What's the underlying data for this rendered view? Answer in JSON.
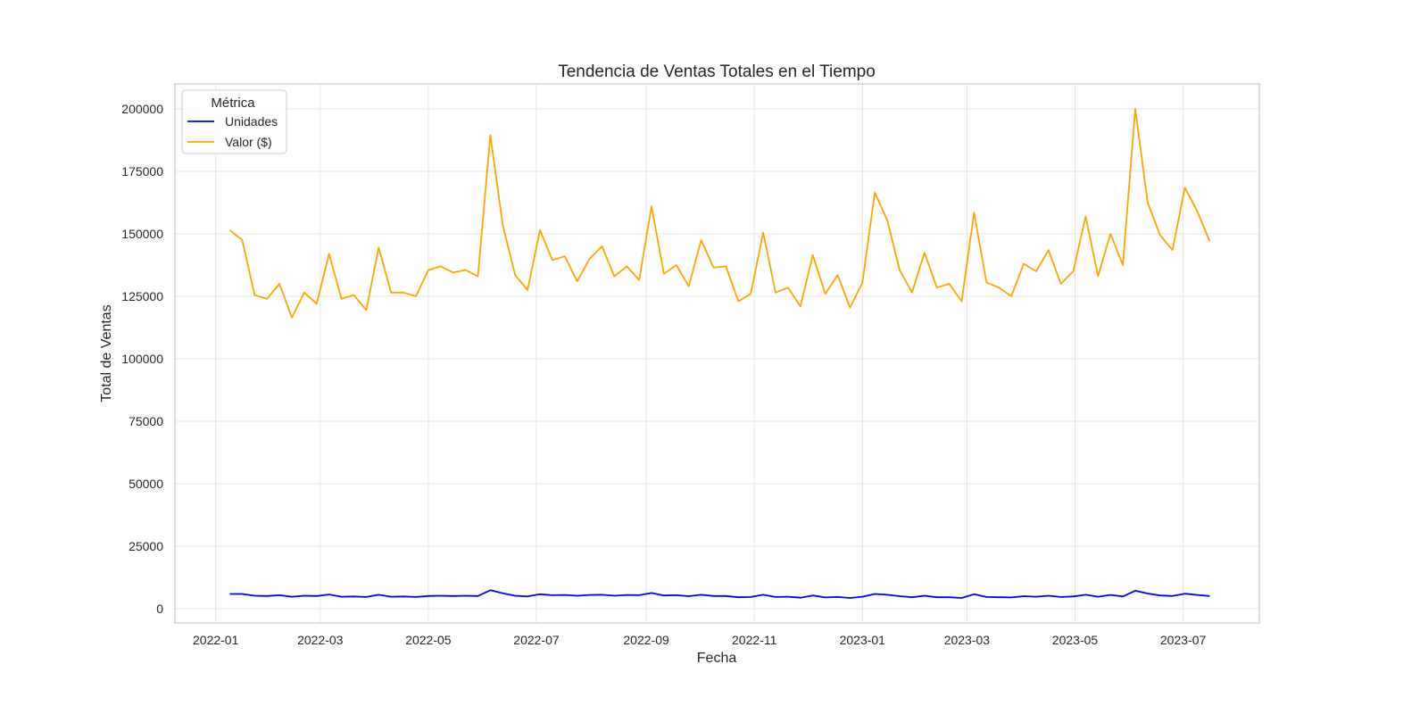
{
  "chart_data": {
    "type": "line",
    "title": "Tendencia de Ventas Totales en el Tiempo",
    "xlabel": "Fecha",
    "ylabel": "Total de Ventas",
    "x_type": "date",
    "xlim": [
      "2021-12-09",
      "2023-08-13"
    ],
    "ylim": [
      -5700,
      210000
    ],
    "x_ticks": [
      "2022-01-01",
      "2022-03-01",
      "2022-05-01",
      "2022-07-01",
      "2022-09-01",
      "2022-11-01",
      "2023-01-01",
      "2023-03-01",
      "2023-05-01",
      "2023-07-01"
    ],
    "x_tick_labels": [
      "2022-01",
      "2022-03",
      "2022-05",
      "2022-07",
      "2022-09",
      "2022-11",
      "2023-01",
      "2023-03",
      "2023-05",
      "2023-07"
    ],
    "y_ticks": [
      0,
      25000,
      50000,
      75000,
      100000,
      125000,
      150000,
      175000,
      200000
    ],
    "y_tick_labels": [
      "0",
      "25000",
      "50000",
      "75000",
      "100000",
      "125000",
      "150000",
      "175000",
      "200000"
    ],
    "grid": true,
    "legend": {
      "title": "Métrica",
      "position": "top-left"
    },
    "x": [
      "2022-01-09",
      "2022-01-16",
      "2022-01-23",
      "2022-01-30",
      "2022-02-06",
      "2022-02-13",
      "2022-02-20",
      "2022-02-27",
      "2022-03-06",
      "2022-03-13",
      "2022-03-20",
      "2022-03-27",
      "2022-04-03",
      "2022-04-10",
      "2022-04-17",
      "2022-04-24",
      "2022-05-01",
      "2022-05-08",
      "2022-05-15",
      "2022-05-22",
      "2022-05-29",
      "2022-06-05",
      "2022-06-12",
      "2022-06-19",
      "2022-06-26",
      "2022-07-03",
      "2022-07-10",
      "2022-07-17",
      "2022-07-24",
      "2022-07-31",
      "2022-08-07",
      "2022-08-14",
      "2022-08-21",
      "2022-08-28",
      "2022-09-04",
      "2022-09-11",
      "2022-09-18",
      "2022-09-25",
      "2022-10-02",
      "2022-10-09",
      "2022-10-16",
      "2022-10-23",
      "2022-10-30",
      "2022-11-06",
      "2022-11-13",
      "2022-11-20",
      "2022-11-27",
      "2022-12-04",
      "2022-12-11",
      "2022-12-18",
      "2022-12-25",
      "2023-01-01",
      "2023-01-08",
      "2023-01-15",
      "2023-01-22",
      "2023-01-29",
      "2023-02-05",
      "2023-02-12",
      "2023-02-19",
      "2023-02-26",
      "2023-03-05",
      "2023-03-12",
      "2023-03-19",
      "2023-03-26",
      "2023-04-02",
      "2023-04-09",
      "2023-04-16",
      "2023-04-23",
      "2023-04-30",
      "2023-05-07",
      "2023-05-14",
      "2023-05-21",
      "2023-05-28",
      "2023-06-04",
      "2023-06-11",
      "2023-06-18",
      "2023-06-25",
      "2023-07-02",
      "2023-07-09",
      "2023-07-16"
    ],
    "series": [
      {
        "name": "Unidades",
        "color": "#0000ff",
        "values": [
          5900,
          5900,
          5200,
          5100,
          5400,
          4800,
          5200,
          5100,
          5700,
          4800,
          4900,
          4700,
          5600,
          4800,
          4900,
          4700,
          5100,
          5200,
          5100,
          5200,
          5100,
          7400,
          6200,
          5200,
          4900,
          5800,
          5400,
          5500,
          5200,
          5500,
          5600,
          5200,
          5500,
          5400,
          6300,
          5300,
          5400,
          5000,
          5600,
          5100,
          5100,
          4600,
          4700,
          5600,
          4700,
          4800,
          4400,
          5300,
          4500,
          4700,
          4300,
          4800,
          5900,
          5600,
          5000,
          4600,
          5200,
          4600,
          4600,
          4300,
          5800,
          4700,
          4600,
          4500,
          5000,
          4800,
          5200,
          4700,
          4900,
          5600,
          4800,
          5500,
          4900,
          7200,
          6100,
          5300,
          5100,
          6000,
          5500,
          5100
        ]
      },
      {
        "name": "Valor ($)",
        "color": "#ffa500",
        "values": [
          151500,
          147500,
          125500,
          124000,
          130000,
          116500,
          126500,
          122000,
          142000,
          124000,
          125500,
          119500,
          144500,
          126500,
          126500,
          125000,
          135500,
          137000,
          134500,
          135500,
          133000,
          189500,
          153500,
          133500,
          127500,
          151500,
          139500,
          141000,
          131000,
          140000,
          145000,
          133000,
          137000,
          131500,
          161000,
          134000,
          137500,
          129000,
          147500,
          136500,
          137000,
          123000,
          126000,
          150500,
          126500,
          128500,
          121000,
          141500,
          126000,
          133500,
          120500,
          130500,
          166500,
          155500,
          135500,
          126500,
          142500,
          128500,
          130000,
          123000,
          158500,
          130500,
          128500,
          125000,
          138000,
          135000,
          143500,
          130000,
          135000,
          157000,
          133000,
          150000,
          137500,
          200000,
          162500,
          149500,
          143500,
          168500,
          159000,
          147000
        ]
      }
    ]
  }
}
